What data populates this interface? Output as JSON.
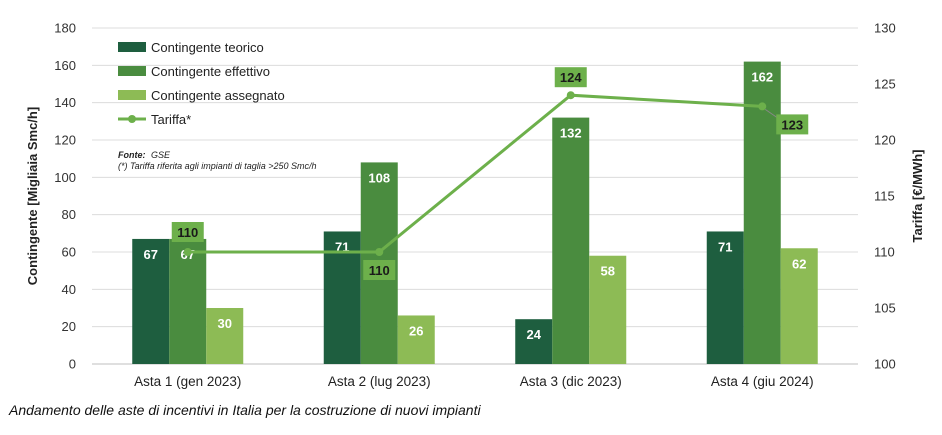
{
  "chart_data": {
    "type": "bar",
    "categories": [
      "Asta 1 (gen 2023)",
      "Asta 2 (lug 2023)",
      "Asta 3 (dic 2023)",
      "Asta 4 (giu 2024)"
    ],
    "series": [
      {
        "name": "Contingente teorico",
        "values": [
          67,
          71,
          24,
          71
        ],
        "color": "#1e5e3f"
      },
      {
        "name": "Contingente effettivo",
        "values": [
          67,
          108,
          132,
          162
        ],
        "color": "#4a8c3f"
      },
      {
        "name": "Contingente assegnato",
        "values": [
          30,
          26,
          58,
          62
        ],
        "color": "#8dbb55"
      }
    ],
    "line_series": {
      "name": "Tariffa*",
      "values": [
        110,
        110,
        124,
        123
      ],
      "color": "#6db04b",
      "axis": "right"
    },
    "ylabel": "Contingente [Migliaia Smc/h]",
    "y2label": "Tariffa [€/MWh]",
    "ylim": [
      0,
      180
    ],
    "y2lim": [
      100,
      130
    ],
    "yticks": [
      "0",
      "20",
      "40",
      "60",
      "80",
      "100",
      "120",
      "140",
      "160",
      "180"
    ],
    "y2ticks": [
      "100",
      "105",
      "110",
      "115",
      "120",
      "125",
      "130"
    ],
    "legend_position": "top-left",
    "grid": true
  },
  "notes": {
    "source_label": "Fonte:",
    "source_value": "GSE",
    "footnote": "(*) Tariffa riferita agli impianti di taglia >250 Smc/h"
  },
  "caption": "Andamento delle aste di incentivi in Italia per la costruzione di nuovi impianti"
}
